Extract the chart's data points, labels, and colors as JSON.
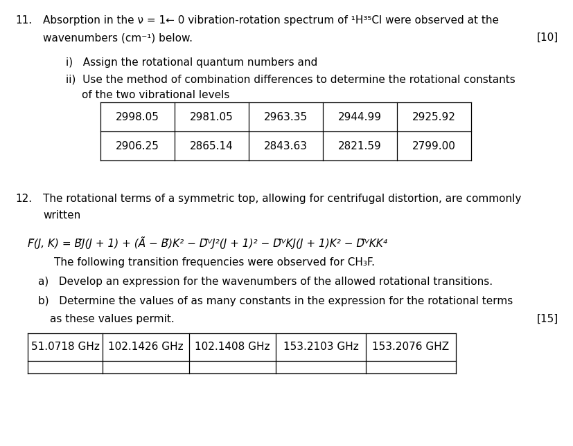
{
  "bg_color": "#ffffff",
  "text_color": "#000000",
  "fig_width": 8.28,
  "fig_height": 6.45,
  "table1_row1": [
    "2998.05",
    "2981.05",
    "2963.35",
    "2944.99",
    "2925.92"
  ],
  "table1_row2": [
    "2906.25",
    "2865.14",
    "2843.63",
    "2821.59",
    "2799.00"
  ],
  "table2_row": [
    "51.0718 GHz",
    "102.1426 GHz",
    "102.1408 GHz",
    "153.2103 GHz",
    "153.2076 GHZ"
  ],
  "fs_main": 11.0,
  "fs_formula": 11.0
}
